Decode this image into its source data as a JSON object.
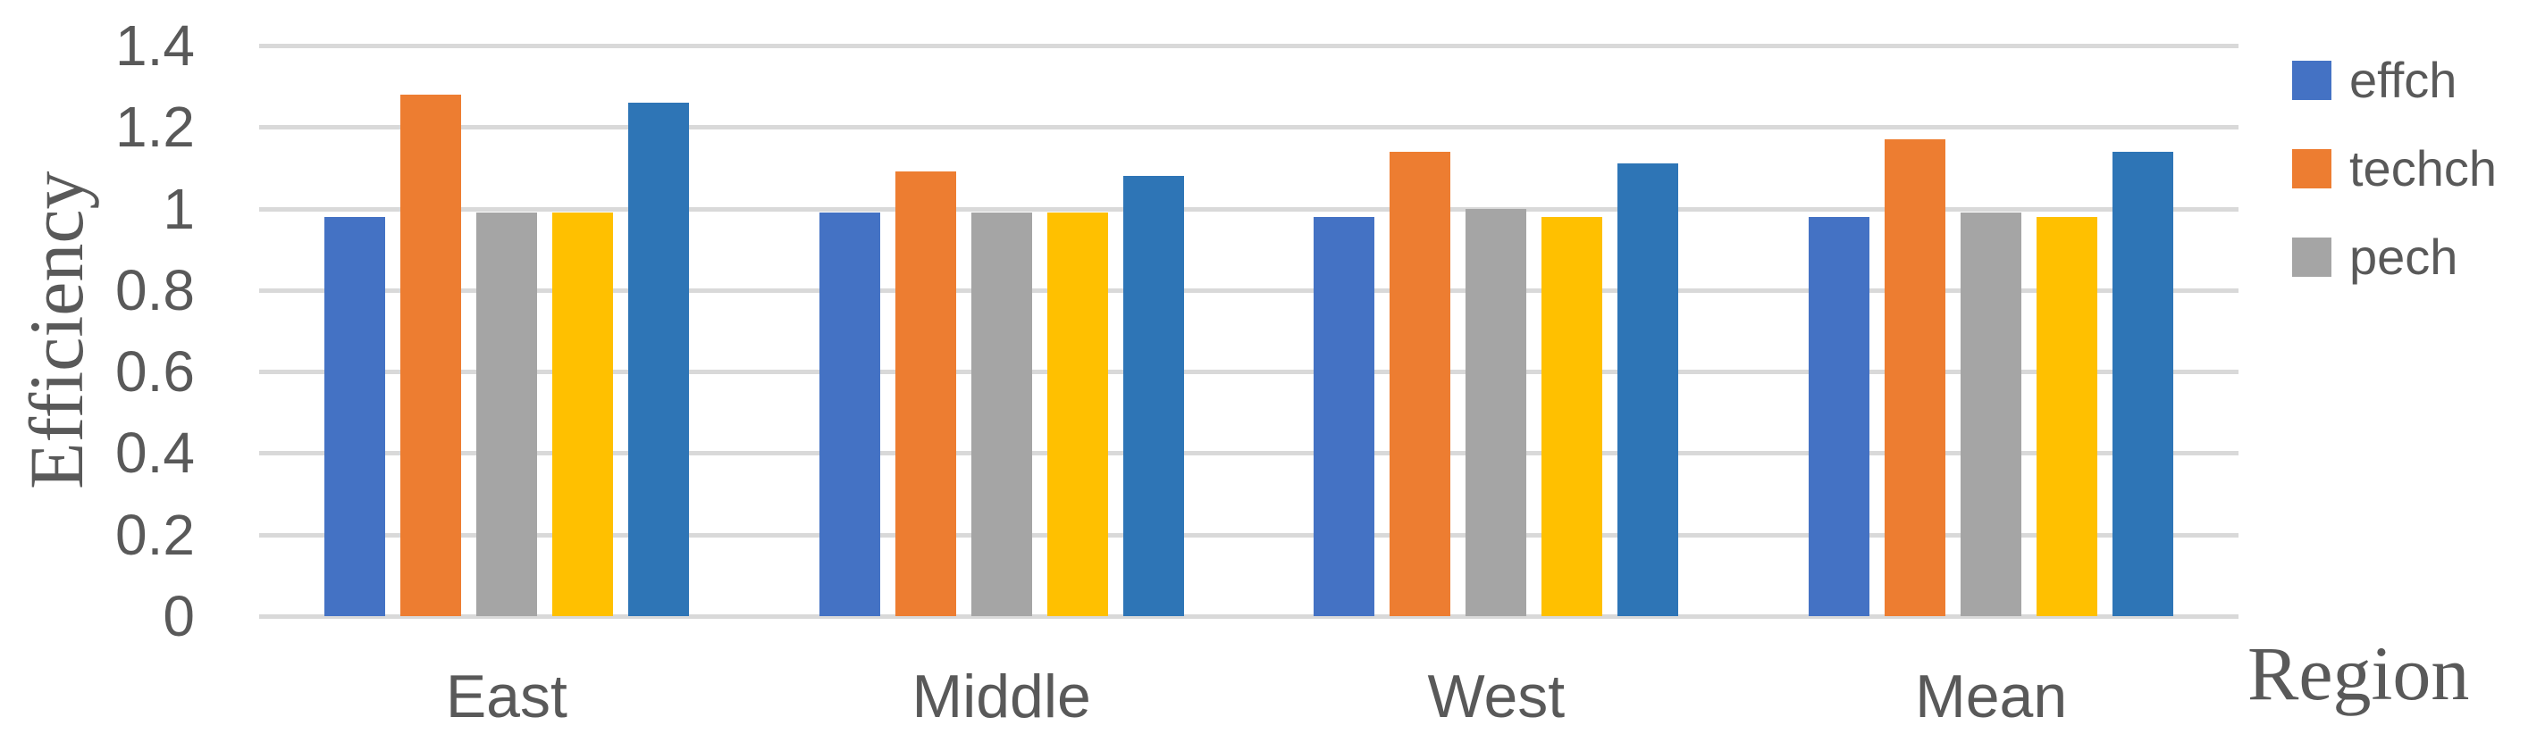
{
  "chart_data": {
    "type": "bar",
    "title": "",
    "ylabel": "Efficiency",
    "xlabel": "Region",
    "categories": [
      "East",
      "Middle",
      "West",
      "Mean"
    ],
    "series": [
      {
        "name": "effch",
        "color": "#4472C4",
        "values": [
          0.98,
          0.99,
          0.98,
          0.98
        ]
      },
      {
        "name": "techch",
        "color": "#ED7D31",
        "values": [
          1.28,
          1.09,
          1.14,
          1.17
        ]
      },
      {
        "name": "pech",
        "color": "#A5A5A5",
        "values": [
          0.99,
          0.99,
          1.0,
          0.99
        ]
      },
      {
        "name": "",
        "color": "#FFC000",
        "values": [
          0.99,
          0.99,
          0.98,
          0.98
        ]
      },
      {
        "name": "",
        "color": "#2E75B6",
        "values": [
          1.26,
          1.08,
          1.11,
          1.14
        ]
      }
    ],
    "legend_entries": [
      {
        "label": "effch",
        "color": "#4472C4"
      },
      {
        "label": "techch",
        "color": "#ED7D31"
      },
      {
        "label": "pech",
        "color": "#A5A5A5"
      }
    ],
    "ylim": [
      0,
      1.4
    ],
    "ytick_step": 0.2,
    "ytick_labels": [
      "0",
      "0.2",
      "0.4",
      "0.6",
      "0.8",
      "1",
      "1.2",
      "1.4"
    ],
    "grid": true,
    "legend_position": "right",
    "colors": {
      "gridline": "#D9D9D9",
      "text": "#595959",
      "background": "#FFFFFF"
    }
  }
}
